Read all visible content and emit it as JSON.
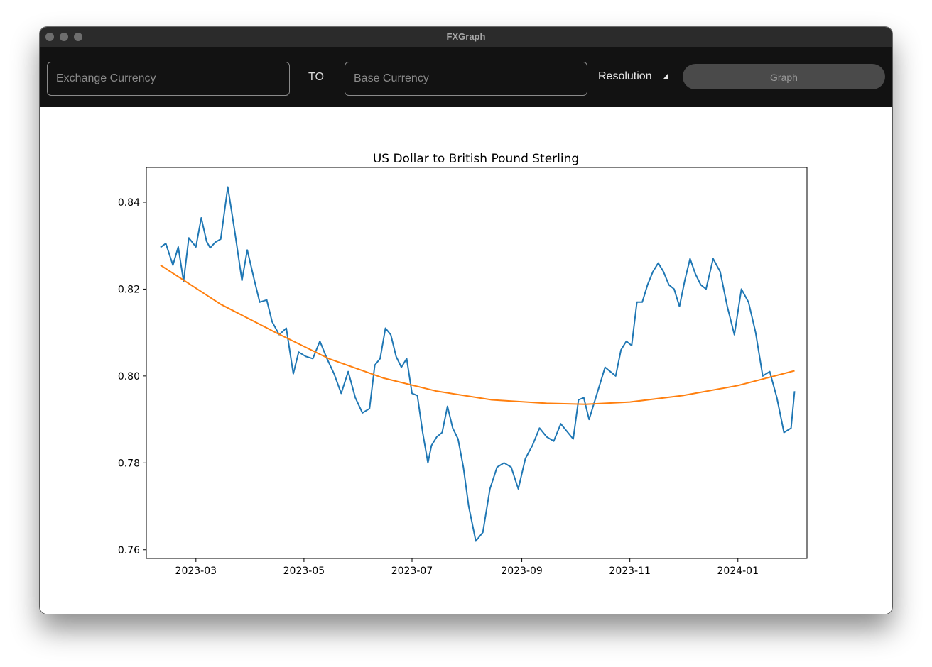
{
  "window": {
    "title": "FXGraph"
  },
  "toolbar": {
    "exchange_placeholder": "Exchange Currency",
    "exchange_value": "",
    "to_label": "TO",
    "base_placeholder": "Base Currency",
    "base_value": "",
    "resolution_label": "Resolution",
    "graph_label": "Graph"
  },
  "colors": {
    "series_rate": "#1f77b4",
    "series_trend": "#ff7f0e",
    "toolbar_bg": "#121212",
    "titlebar_bg": "#2b2b2b"
  },
  "icons": {
    "resolution_caret": "caret-icon"
  },
  "chart_data": {
    "type": "line",
    "title": "US Dollar to British Pound Sterling",
    "xlabel": "",
    "ylabel": "",
    "xlim": [
      "2023-02-01",
      "2024-02-09"
    ],
    "ylim": [
      0.758,
      0.848
    ],
    "grid": false,
    "legend": "none",
    "xticks": [
      "2023-03",
      "2023-05",
      "2023-07",
      "2023-09",
      "2023-11",
      "2024-01"
    ],
    "yticks": [
      "0.76",
      "0.78",
      "0.80",
      "0.82",
      "0.84"
    ],
    "series": [
      {
        "x": [
          "2023-02-09",
          "2023-02-12",
          "2023-02-16",
          "2023-02-19",
          "2023-02-22",
          "2023-02-25",
          "2023-03-01",
          "2023-03-04",
          "2023-03-07",
          "2023-03-09",
          "2023-03-12",
          "2023-03-15",
          "2023-03-19",
          "2023-03-23",
          "2023-03-27",
          "2023-03-30",
          "2023-04-03",
          "2023-04-06",
          "2023-04-10",
          "2023-04-13",
          "2023-04-17",
          "2023-04-21",
          "2023-04-25",
          "2023-04-28",
          "2023-05-02",
          "2023-05-06",
          "2023-05-10",
          "2023-05-14",
          "2023-05-18",
          "2023-05-22",
          "2023-05-26",
          "2023-05-30",
          "2023-06-03",
          "2023-06-07",
          "2023-06-10",
          "2023-06-13",
          "2023-06-16",
          "2023-06-19",
          "2023-06-22",
          "2023-06-25",
          "2023-06-28",
          "2023-07-01",
          "2023-07-04",
          "2023-07-07",
          "2023-07-10",
          "2023-07-12",
          "2023-07-15",
          "2023-07-18",
          "2023-07-21",
          "2023-07-24",
          "2023-07-27",
          "2023-07-30",
          "2023-08-02",
          "2023-08-06",
          "2023-08-10",
          "2023-08-14",
          "2023-08-18",
          "2023-08-22",
          "2023-08-26",
          "2023-08-30",
          "2023-09-03",
          "2023-09-07",
          "2023-09-11",
          "2023-09-15",
          "2023-09-19",
          "2023-09-23",
          "2023-09-27",
          "2023-09-30",
          "2023-10-03",
          "2023-10-06",
          "2023-10-09",
          "2023-10-12",
          "2023-10-15",
          "2023-10-18",
          "2023-10-21",
          "2023-10-24",
          "2023-10-27",
          "2023-10-30",
          "2023-11-02",
          "2023-11-05",
          "2023-11-08",
          "2023-11-11",
          "2023-11-14",
          "2023-11-17",
          "2023-11-20",
          "2023-11-23",
          "2023-11-26",
          "2023-11-29",
          "2023-12-02",
          "2023-12-05",
          "2023-12-08",
          "2023-12-11",
          "2023-12-14",
          "2023-12-18",
          "2023-12-22",
          "2023-12-26",
          "2023-12-30",
          "2024-01-03",
          "2024-01-07",
          "2024-01-11",
          "2024-01-15",
          "2024-01-19",
          "2024-01-23",
          "2024-01-27",
          "2024-01-31",
          "2024-02-02"
        ],
        "values": [
          0.8296,
          0.8305,
          0.8255,
          0.8297,
          0.8218,
          0.8318,
          0.8297,
          0.8364,
          0.831,
          0.8295,
          0.8308,
          0.8315,
          0.8435,
          0.833,
          0.822,
          0.829,
          0.822,
          0.817,
          0.8175,
          0.8125,
          0.8095,
          0.811,
          0.8005,
          0.8055,
          0.8045,
          0.804,
          0.808,
          0.804,
          0.8005,
          0.796,
          0.801,
          0.795,
          0.7915,
          0.7925,
          0.8025,
          0.804,
          0.811,
          0.8095,
          0.8045,
          0.802,
          0.804,
          0.796,
          0.7955,
          0.787,
          0.78,
          0.784,
          0.786,
          0.787,
          0.793,
          0.788,
          0.7855,
          0.779,
          0.77,
          0.762,
          0.764,
          0.774,
          0.779,
          0.78,
          0.779,
          0.774,
          0.781,
          0.784,
          0.788,
          0.786,
          0.785,
          0.789,
          0.787,
          0.7855,
          0.7945,
          0.795,
          0.79,
          0.794,
          0.798,
          0.802,
          0.801,
          0.8,
          0.806,
          0.808,
          0.807,
          0.817,
          0.817,
          0.821,
          0.824,
          0.826,
          0.824,
          0.821,
          0.82,
          0.816,
          0.822,
          0.827,
          0.8235,
          0.821,
          0.82,
          0.827,
          0.824,
          0.816,
          0.8095,
          0.82,
          0.817,
          0.81,
          0.8,
          0.801,
          0.795,
          0.787,
          0.788,
          0.7965
        ]
      },
      {
        "x": [
          "2023-02-09",
          "2023-03-15",
          "2023-04-15",
          "2023-05-15",
          "2023-06-15",
          "2023-07-15",
          "2023-08-15",
          "2023-09-15",
          "2023-10-07",
          "2023-11-01",
          "2023-12-01",
          "2024-01-01",
          "2024-02-02"
        ],
        "values": [
          0.8255,
          0.8165,
          0.81,
          0.804,
          0.7995,
          0.7965,
          0.7945,
          0.7937,
          0.7935,
          0.794,
          0.7955,
          0.7978,
          0.8012
        ]
      }
    ]
  }
}
